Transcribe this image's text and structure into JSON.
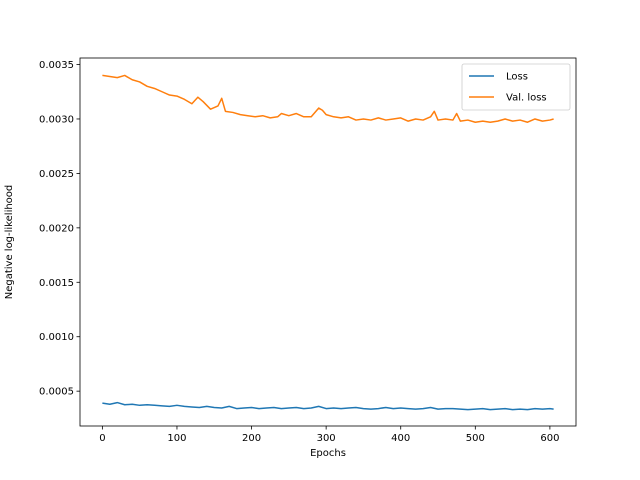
{
  "chart_data": {
    "type": "line",
    "title": "",
    "xlabel": "Epochs",
    "ylabel": "Negative log-likelihood",
    "xlim": [
      -30,
      635
    ],
    "ylim": [
      0.00018,
      0.00356
    ],
    "xticks": [
      0,
      100,
      200,
      300,
      400,
      500,
      600
    ],
    "yticks": [
      0.0005,
      0.001,
      0.0015,
      0.002,
      0.0025,
      0.003,
      0.0035
    ],
    "ytick_labels": [
      "0.0005",
      "0.0010",
      "0.0015",
      "0.0020",
      "0.0025",
      "0.0030",
      "0.0035"
    ],
    "grid": false,
    "legend": "top-right",
    "series": [
      {
        "name": "Loss",
        "color": "#1f77b4",
        "x": [
          0,
          10,
          20,
          30,
          40,
          50,
          60,
          70,
          80,
          90,
          100,
          110,
          120,
          130,
          140,
          150,
          160,
          170,
          180,
          190,
          200,
          210,
          220,
          230,
          240,
          250,
          260,
          270,
          280,
          290,
          300,
          310,
          320,
          330,
          340,
          350,
          360,
          370,
          380,
          390,
          400,
          410,
          420,
          430,
          440,
          450,
          460,
          470,
          480,
          490,
          500,
          510,
          520,
          530,
          540,
          550,
          560,
          570,
          580,
          590,
          600,
          605
        ],
        "y": [
          0.00039,
          0.00038,
          0.000395,
          0.000375,
          0.00038,
          0.00037,
          0.000375,
          0.00037,
          0.000365,
          0.00036,
          0.00037,
          0.00036,
          0.000355,
          0.00035,
          0.00036,
          0.00035,
          0.000345,
          0.00036,
          0.00034,
          0.000345,
          0.00035,
          0.00034,
          0.000345,
          0.00035,
          0.00034,
          0.000345,
          0.00035,
          0.00034,
          0.000345,
          0.00036,
          0.00034,
          0.000345,
          0.00034,
          0.000345,
          0.00035,
          0.00034,
          0.000335,
          0.00034,
          0.00035,
          0.00034,
          0.000345,
          0.00034,
          0.000335,
          0.00034,
          0.00035,
          0.000335,
          0.00034,
          0.00034,
          0.000335,
          0.00033,
          0.000335,
          0.00034,
          0.00033,
          0.000335,
          0.00034,
          0.00033,
          0.000335,
          0.00033,
          0.00034,
          0.000335,
          0.00034,
          0.000335
        ]
      },
      {
        "name": "Val. loss",
        "color": "#ff7f0e",
        "x": [
          0,
          10,
          20,
          30,
          40,
          50,
          60,
          70,
          80,
          90,
          100,
          110,
          120,
          128,
          135,
          145,
          155,
          160,
          165,
          175,
          185,
          195,
          205,
          215,
          225,
          235,
          240,
          250,
          260,
          270,
          280,
          290,
          295,
          300,
          310,
          320,
          330,
          340,
          350,
          360,
          370,
          380,
          390,
          400,
          410,
          420,
          430,
          440,
          445,
          450,
          460,
          470,
          475,
          480,
          490,
          500,
          510,
          520,
          530,
          540,
          550,
          560,
          570,
          580,
          590,
          600,
          605
        ],
        "y": [
          0.0034,
          0.00339,
          0.00338,
          0.0034,
          0.00336,
          0.00334,
          0.0033,
          0.00328,
          0.00325,
          0.00322,
          0.00321,
          0.00318,
          0.00314,
          0.0032,
          0.00316,
          0.00309,
          0.00312,
          0.00319,
          0.00307,
          0.00306,
          0.00304,
          0.00303,
          0.00302,
          0.00303,
          0.00301,
          0.00302,
          0.00305,
          0.00303,
          0.00305,
          0.00302,
          0.00302,
          0.0031,
          0.00308,
          0.00304,
          0.00302,
          0.00301,
          0.00302,
          0.00299,
          0.003,
          0.00299,
          0.00301,
          0.00299,
          0.003,
          0.00301,
          0.00298,
          0.003,
          0.00299,
          0.00302,
          0.00307,
          0.00299,
          0.003,
          0.00299,
          0.00305,
          0.00298,
          0.00299,
          0.00297,
          0.00298,
          0.00297,
          0.00298,
          0.003,
          0.00298,
          0.00299,
          0.00297,
          0.003,
          0.00298,
          0.00299,
          0.003
        ]
      }
    ]
  }
}
